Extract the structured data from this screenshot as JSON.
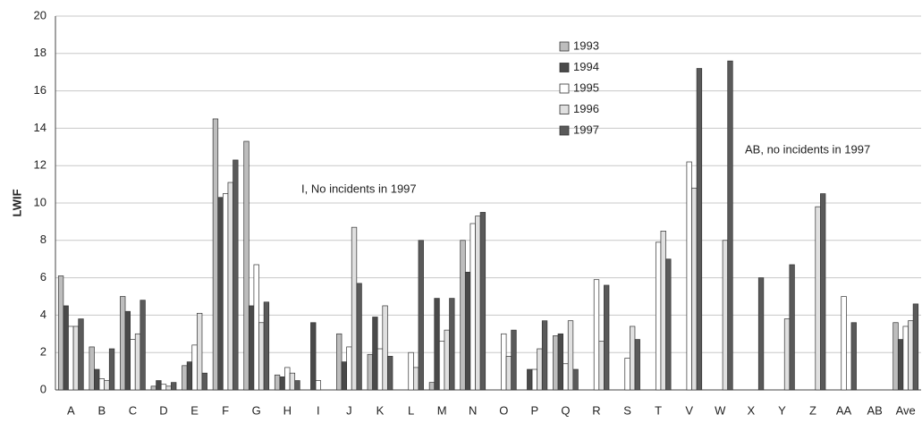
{
  "chart_data": {
    "type": "bar",
    "ylabel": "LWIF",
    "categories": [
      "A",
      "B",
      "C",
      "D",
      "E",
      "F",
      "G",
      "H",
      "I",
      "J",
      "K",
      "L",
      "M",
      "N",
      "O",
      "P",
      "Q",
      "R",
      "S",
      "T",
      "V",
      "W",
      "X",
      "Y",
      "Z",
      "AA",
      "AB",
      "Ave"
    ],
    "series": [
      {
        "name": "1993",
        "color": "#bdbdbd",
        "values": [
          6.1,
          2.3,
          5.0,
          0.2,
          1.3,
          14.5,
          13.3,
          0.8,
          null,
          3.0,
          1.9,
          null,
          0.4,
          8.0,
          null,
          null,
          2.9,
          null,
          null,
          null,
          null,
          null,
          null,
          null,
          null,
          null,
          null,
          3.6
        ]
      },
      {
        "name": "1994",
        "color": "#4a4a4a",
        "values": [
          4.5,
          1.1,
          4.2,
          0.5,
          1.5,
          10.3,
          4.5,
          0.7,
          3.6,
          1.5,
          3.9,
          null,
          4.9,
          6.3,
          null,
          1.1,
          3.0,
          null,
          null,
          null,
          null,
          null,
          null,
          null,
          null,
          null,
          null,
          2.7
        ]
      },
      {
        "name": "1995",
        "color": "#ffffff",
        "values": [
          3.4,
          0.6,
          2.7,
          0.3,
          2.4,
          10.5,
          6.7,
          1.2,
          0.5,
          2.3,
          2.2,
          2.0,
          2.6,
          8.9,
          3.0,
          1.1,
          1.4,
          5.9,
          1.7,
          7.9,
          12.2,
          null,
          null,
          null,
          null,
          5.0,
          null,
          3.4
        ]
      },
      {
        "name": "1996",
        "color": "#e0e0e0",
        "values": [
          3.4,
          0.5,
          3.0,
          0.2,
          4.1,
          11.1,
          3.6,
          0.9,
          null,
          8.7,
          4.5,
          1.2,
          3.2,
          9.3,
          1.8,
          2.2,
          3.7,
          2.6,
          3.4,
          8.5,
          10.8,
          8.0,
          null,
          3.8,
          9.8,
          null,
          null,
          3.7
        ]
      },
      {
        "name": "1997",
        "color": "#5a5a5a",
        "values": [
          3.8,
          2.2,
          4.8,
          0.4,
          0.9,
          12.3,
          4.7,
          0.5,
          null,
          5.7,
          1.8,
          8.0,
          4.9,
          9.5,
          3.2,
          3.7,
          1.1,
          5.6,
          2.7,
          7.0,
          17.2,
          17.6,
          6.0,
          6.7,
          10.5,
          3.6,
          null,
          4.6
        ]
      }
    ],
    "annotations": [
      "I, No incidents in 1997",
      "AB, no incidents in 1997"
    ],
    "ylim": [
      0,
      20
    ],
    "yticks": [
      0,
      2,
      4,
      6,
      8,
      10,
      12,
      14,
      16,
      18,
      20
    ],
    "grid": true
  }
}
